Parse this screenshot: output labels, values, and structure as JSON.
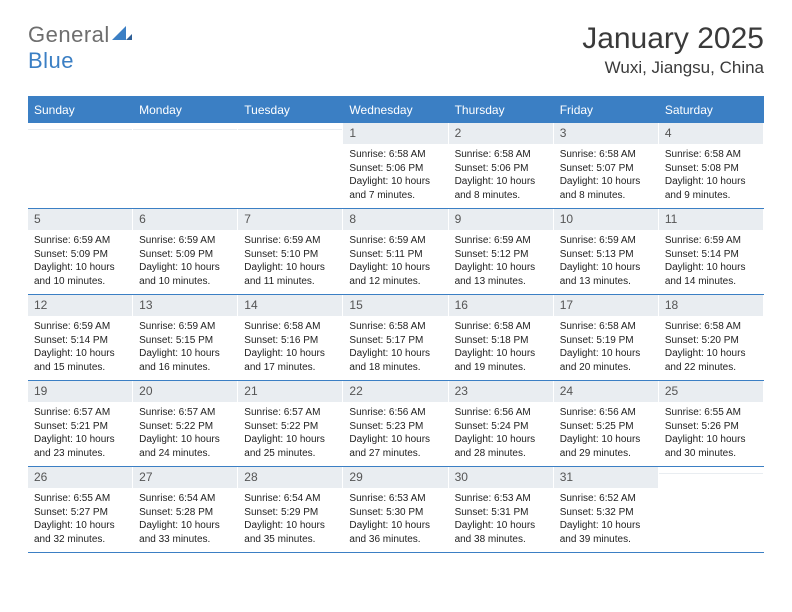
{
  "logo": {
    "text1": "General",
    "text2": "Blue"
  },
  "header": {
    "month_title": "January 2025",
    "location": "Wuxi, Jiangsu, China"
  },
  "style": {
    "accent_color": "#3b7fc4",
    "header_text_color": "#ffffff",
    "daynum_bg": "#e9edf1",
    "body_text": "#222222",
    "page_bg": "#ffffff",
    "month_title_fontsize": 30,
    "location_fontsize": 17,
    "dayhead_fontsize": 12,
    "info_fontsize": 10,
    "columns": 7
  },
  "day_names": [
    "Sunday",
    "Monday",
    "Tuesday",
    "Wednesday",
    "Thursday",
    "Friday",
    "Saturday"
  ],
  "weeks": [
    [
      {
        "n": "",
        "sunrise": "",
        "sunset": "",
        "daylight": ""
      },
      {
        "n": "",
        "sunrise": "",
        "sunset": "",
        "daylight": ""
      },
      {
        "n": "",
        "sunrise": "",
        "sunset": "",
        "daylight": ""
      },
      {
        "n": "1",
        "sunrise": "Sunrise: 6:58 AM",
        "sunset": "Sunset: 5:06 PM",
        "daylight": "Daylight: 10 hours and 7 minutes."
      },
      {
        "n": "2",
        "sunrise": "Sunrise: 6:58 AM",
        "sunset": "Sunset: 5:06 PM",
        "daylight": "Daylight: 10 hours and 8 minutes."
      },
      {
        "n": "3",
        "sunrise": "Sunrise: 6:58 AM",
        "sunset": "Sunset: 5:07 PM",
        "daylight": "Daylight: 10 hours and 8 minutes."
      },
      {
        "n": "4",
        "sunrise": "Sunrise: 6:58 AM",
        "sunset": "Sunset: 5:08 PM",
        "daylight": "Daylight: 10 hours and 9 minutes."
      }
    ],
    [
      {
        "n": "5",
        "sunrise": "Sunrise: 6:59 AM",
        "sunset": "Sunset: 5:09 PM",
        "daylight": "Daylight: 10 hours and 10 minutes."
      },
      {
        "n": "6",
        "sunrise": "Sunrise: 6:59 AM",
        "sunset": "Sunset: 5:09 PM",
        "daylight": "Daylight: 10 hours and 10 minutes."
      },
      {
        "n": "7",
        "sunrise": "Sunrise: 6:59 AM",
        "sunset": "Sunset: 5:10 PM",
        "daylight": "Daylight: 10 hours and 11 minutes."
      },
      {
        "n": "8",
        "sunrise": "Sunrise: 6:59 AM",
        "sunset": "Sunset: 5:11 PM",
        "daylight": "Daylight: 10 hours and 12 minutes."
      },
      {
        "n": "9",
        "sunrise": "Sunrise: 6:59 AM",
        "sunset": "Sunset: 5:12 PM",
        "daylight": "Daylight: 10 hours and 13 minutes."
      },
      {
        "n": "10",
        "sunrise": "Sunrise: 6:59 AM",
        "sunset": "Sunset: 5:13 PM",
        "daylight": "Daylight: 10 hours and 13 minutes."
      },
      {
        "n": "11",
        "sunrise": "Sunrise: 6:59 AM",
        "sunset": "Sunset: 5:14 PM",
        "daylight": "Daylight: 10 hours and 14 minutes."
      }
    ],
    [
      {
        "n": "12",
        "sunrise": "Sunrise: 6:59 AM",
        "sunset": "Sunset: 5:14 PM",
        "daylight": "Daylight: 10 hours and 15 minutes."
      },
      {
        "n": "13",
        "sunrise": "Sunrise: 6:59 AM",
        "sunset": "Sunset: 5:15 PM",
        "daylight": "Daylight: 10 hours and 16 minutes."
      },
      {
        "n": "14",
        "sunrise": "Sunrise: 6:58 AM",
        "sunset": "Sunset: 5:16 PM",
        "daylight": "Daylight: 10 hours and 17 minutes."
      },
      {
        "n": "15",
        "sunrise": "Sunrise: 6:58 AM",
        "sunset": "Sunset: 5:17 PM",
        "daylight": "Daylight: 10 hours and 18 minutes."
      },
      {
        "n": "16",
        "sunrise": "Sunrise: 6:58 AM",
        "sunset": "Sunset: 5:18 PM",
        "daylight": "Daylight: 10 hours and 19 minutes."
      },
      {
        "n": "17",
        "sunrise": "Sunrise: 6:58 AM",
        "sunset": "Sunset: 5:19 PM",
        "daylight": "Daylight: 10 hours and 20 minutes."
      },
      {
        "n": "18",
        "sunrise": "Sunrise: 6:58 AM",
        "sunset": "Sunset: 5:20 PM",
        "daylight": "Daylight: 10 hours and 22 minutes."
      }
    ],
    [
      {
        "n": "19",
        "sunrise": "Sunrise: 6:57 AM",
        "sunset": "Sunset: 5:21 PM",
        "daylight": "Daylight: 10 hours and 23 minutes."
      },
      {
        "n": "20",
        "sunrise": "Sunrise: 6:57 AM",
        "sunset": "Sunset: 5:22 PM",
        "daylight": "Daylight: 10 hours and 24 minutes."
      },
      {
        "n": "21",
        "sunrise": "Sunrise: 6:57 AM",
        "sunset": "Sunset: 5:22 PM",
        "daylight": "Daylight: 10 hours and 25 minutes."
      },
      {
        "n": "22",
        "sunrise": "Sunrise: 6:56 AM",
        "sunset": "Sunset: 5:23 PM",
        "daylight": "Daylight: 10 hours and 27 minutes."
      },
      {
        "n": "23",
        "sunrise": "Sunrise: 6:56 AM",
        "sunset": "Sunset: 5:24 PM",
        "daylight": "Daylight: 10 hours and 28 minutes."
      },
      {
        "n": "24",
        "sunrise": "Sunrise: 6:56 AM",
        "sunset": "Sunset: 5:25 PM",
        "daylight": "Daylight: 10 hours and 29 minutes."
      },
      {
        "n": "25",
        "sunrise": "Sunrise: 6:55 AM",
        "sunset": "Sunset: 5:26 PM",
        "daylight": "Daylight: 10 hours and 30 minutes."
      }
    ],
    [
      {
        "n": "26",
        "sunrise": "Sunrise: 6:55 AM",
        "sunset": "Sunset: 5:27 PM",
        "daylight": "Daylight: 10 hours and 32 minutes."
      },
      {
        "n": "27",
        "sunrise": "Sunrise: 6:54 AM",
        "sunset": "Sunset: 5:28 PM",
        "daylight": "Daylight: 10 hours and 33 minutes."
      },
      {
        "n": "28",
        "sunrise": "Sunrise: 6:54 AM",
        "sunset": "Sunset: 5:29 PM",
        "daylight": "Daylight: 10 hours and 35 minutes."
      },
      {
        "n": "29",
        "sunrise": "Sunrise: 6:53 AM",
        "sunset": "Sunset: 5:30 PM",
        "daylight": "Daylight: 10 hours and 36 minutes."
      },
      {
        "n": "30",
        "sunrise": "Sunrise: 6:53 AM",
        "sunset": "Sunset: 5:31 PM",
        "daylight": "Daylight: 10 hours and 38 minutes."
      },
      {
        "n": "31",
        "sunrise": "Sunrise: 6:52 AM",
        "sunset": "Sunset: 5:32 PM",
        "daylight": "Daylight: 10 hours and 39 minutes."
      },
      {
        "n": "",
        "sunrise": "",
        "sunset": "",
        "daylight": ""
      }
    ]
  ]
}
